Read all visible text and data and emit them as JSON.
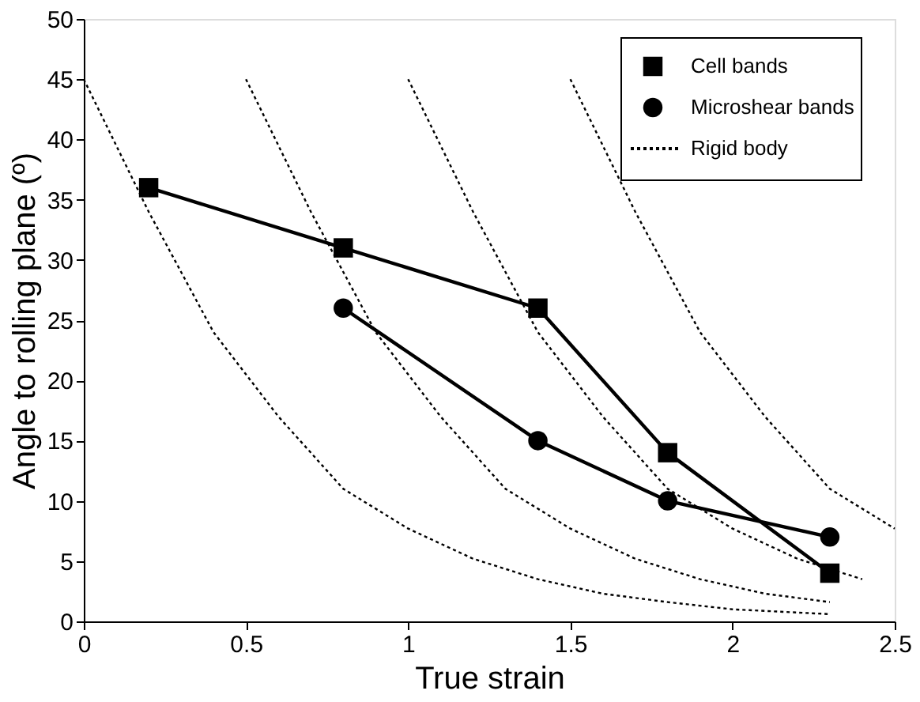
{
  "chart_data": {
    "type": "line",
    "xlabel": "True strain",
    "ylabel": "Angle to rolling plane (º)",
    "xlim": [
      0,
      2.5
    ],
    "xticks": [
      0,
      0.5,
      1,
      1.5,
      2,
      2.5
    ],
    "ylim": [
      0,
      50
    ],
    "yticks": [
      0,
      5,
      10,
      15,
      20,
      25,
      30,
      35,
      40,
      45,
      50
    ],
    "grid": false,
    "legend": "top right",
    "series": [
      {
        "name": "Cell bands",
        "color": "#000000",
        "marker": "square",
        "line_style": "solid",
        "x": [
          0.2,
          0.8,
          1.4,
          1.8,
          2.3
        ],
        "values": [
          36,
          31,
          26,
          14,
          4
        ]
      },
      {
        "name": "Microshear bands",
        "color": "#000000",
        "marker": "circle",
        "line_style": "solid",
        "x": [
          0.8,
          1.4,
          1.8,
          2.3
        ],
        "values": [
          26,
          15,
          10,
          7
        ]
      },
      {
        "name": "Rigid body",
        "color": "#000000",
        "marker": "none",
        "line_style": "dotted",
        "x": [
          0,
          0.2,
          0.4,
          0.6,
          0.8,
          1.0,
          1.2,
          1.4,
          1.6,
          1.8,
          2.0,
          2.3
        ],
        "values": [
          45,
          34,
          24,
          17,
          11,
          7.7,
          5.2,
          3.5,
          2.3,
          1.6,
          1.0,
          0.6
        ]
      },
      {
        "color": "#000000",
        "marker": "none",
        "line_style": "dotted",
        "x": [
          0.5,
          0.7,
          0.9,
          1.1,
          1.3,
          1.5,
          1.7,
          1.9,
          2.1,
          2.3
        ],
        "values": [
          45,
          34,
          24,
          17,
          11,
          7.7,
          5.2,
          3.5,
          2.3,
          1.6
        ]
      },
      {
        "color": "#000000",
        "marker": "none",
        "line_style": "dotted",
        "x": [
          1.0,
          1.2,
          1.4,
          1.6,
          1.8,
          2.0,
          2.2,
          2.4
        ],
        "values": [
          45,
          34,
          24,
          17,
          11,
          7.7,
          5.2,
          3.5
        ]
      },
      {
        "color": "#000000",
        "marker": "none",
        "line_style": "dotted",
        "x": [
          1.5,
          1.7,
          1.9,
          2.1,
          2.3,
          2.5
        ],
        "values": [
          45,
          34,
          24,
          17,
          11,
          7.7
        ]
      }
    ]
  }
}
